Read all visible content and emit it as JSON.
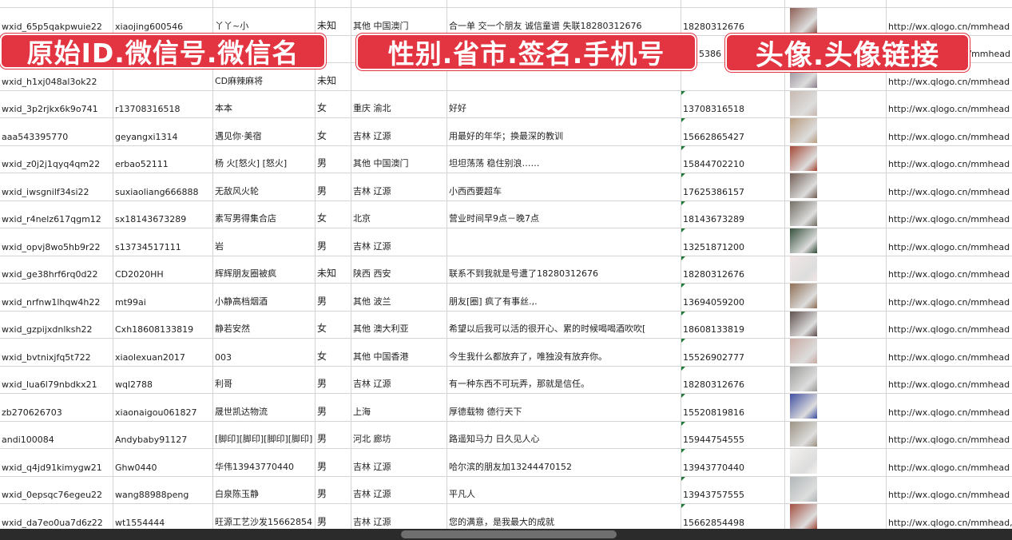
{
  "banners": {
    "left": "原始ID.微信号.微信名",
    "middle": "性别.省市.签名.手机号",
    "right": "头像.头像链接"
  },
  "avatar_colors": [
    "#c9a9a0",
    "#8a7d8c",
    "#c7b8b0",
    "#b79a7c",
    "#a3432f",
    "#6d5a50",
    "#6f6a60",
    "#2f4a36",
    "#f2e6e6",
    "#8c6a50",
    "#5a4a48",
    "#c8a8a0",
    "#9a9a98",
    "#3a4aa0",
    "#9a9080",
    "#f4f2f0",
    "#b0b6b8",
    "#a04a3a"
  ],
  "rows": [
    {
      "id": "wxid_65p5qakpwuie22",
      "wechat": "xiaojing600546",
      "name": "丫丫~小",
      "gender": "未知",
      "region": "其他 中国澳门",
      "signature": "合一单 交一个朋友 诚信童谱 失联18280312676",
      "phone": "18280312676",
      "url": "http://wx.qlogo.cn/mmhead"
    },
    {
      "id": "",
      "wechat": "",
      "name": "",
      "gender": "",
      "region": "",
      "signature": "",
      "phone": "5386",
      "url": "/mmhead"
    },
    {
      "id": "wxid_h1xj048al3ok22",
      "wechat": "",
      "name": "CD麻辣麻将",
      "gender": "未知",
      "region": "",
      "signature": "",
      "phone": "",
      "url": "http://wx.qlogo.cn/mmhead"
    },
    {
      "id": "wxid_3p2rjkx6k9o741",
      "wechat": "r13708316518",
      "name": "本本",
      "gender": "女",
      "region": "重庆 渝北",
      "signature": "好好",
      "phone": "13708316518",
      "url": "http://wx.qlogo.cn/mmhead"
    },
    {
      "id": "aaa543395770",
      "wechat": "geyangxi1314",
      "name": "遇见你·美宿",
      "gender": "女",
      "region": "吉林 辽源",
      "signature": "用最好的年华；换最深的教训",
      "phone": "15662865427",
      "url": "http://wx.qlogo.cn/mmhead"
    },
    {
      "id": "wxid_z0j2j1qyq4qm22",
      "wechat": "erbao52111",
      "name": "杨 火[怒火] [怒火]",
      "gender": "男",
      "region": "其他 中国澳门",
      "signature": "坦坦荡荡 稳住别浪……",
      "phone": "15844702210",
      "url": "http://wx.qlogo.cn/mmhead"
    },
    {
      "id": "wxid_iwsgnilf34si22",
      "wechat": "suxiaoliang666888",
      "name": "无敌风火轮",
      "gender": "男",
      "region": "吉林 辽源",
      "signature": "小西西要超车",
      "phone": "17625386157",
      "url": "http://wx.qlogo.cn/mmhead"
    },
    {
      "id": "wxid_r4nelz617qgm12",
      "wechat": "sx18143673289",
      "name": "素写男得集合店",
      "gender": "女",
      "region": "北京",
      "signature": "营业时间早9点－晚7点",
      "phone": "18143673289",
      "url": "http://wx.qlogo.cn/mmhead"
    },
    {
      "id": "wxid_opvj8wo5hb9r22",
      "wechat": "s13734517111",
      "name": "岩",
      "gender": "男",
      "region": "吉林 辽源",
      "signature": "",
      "phone": "13251871200",
      "url": "http://wx.qlogo.cn/mmhead"
    },
    {
      "id": "wxid_ge38hrf6rq0d22",
      "wechat": "CD2020HH",
      "name": "辉辉朋友圈被疯",
      "gender": "未知",
      "region": "陕西 西安",
      "signature": "联系不到我就是号遭了18280312676",
      "phone": "18280312676",
      "url": "http://wx.qlogo.cn/mmhead"
    },
    {
      "id": "wxid_nrfnw1lhqw4h22",
      "wechat": "mt99ai",
      "name": "小静高档烟酒",
      "gender": "男",
      "region": "其他 波兰",
      "signature": "朋友[圈] 疯了有事丝.,.",
      "phone": "13694059200",
      "url": "http://wx.qlogo.cn/mmhead"
    },
    {
      "id": "wxid_gzpijxdnlksh22",
      "wechat": "Cxh18608133819",
      "name": "静若安然",
      "gender": "女",
      "region": "其他 澳大利亚",
      "signature": "希望以后我可以活的很开心、累的时候喝喝酒吹吹[",
      "phone": "18608133819",
      "url": "http://wx.qlogo.cn/mmhead"
    },
    {
      "id": "wxid_bvtnixjfq5t722",
      "wechat": "xiaolexuan2017",
      "name": "003",
      "gender": "女",
      "region": "其他 中国香港",
      "signature": "今生我什么都放弃了，唯独没有放弃你。",
      "phone": "15526902777",
      "url": "http://wx.qlogo.cn/mmhead"
    },
    {
      "id": "wxid_lua6l79nbdkx21",
      "wechat": "wql2788",
      "name": "利哥",
      "gender": "男",
      "region": "吉林 辽源",
      "signature": "有一种东西不可玩弄，那就是信任。",
      "phone": "18280312676",
      "url": "http://wx.qlogo.cn/mmhead"
    },
    {
      "id": "zb270626703",
      "wechat": "xiaonaigou061827",
      "name": "晟世凯达物流",
      "gender": "男",
      "region": "上海",
      "signature": "厚德载物 德行天下",
      "phone": "15520819816",
      "url": "http://wx.qlogo.cn/mmhead"
    },
    {
      "id": "andi100084",
      "wechat": "Andybaby91127",
      "name": "[脚印][脚印][脚印][脚印]",
      "gender": "男",
      "region": "河北 廊坊",
      "signature": "路遥知马力 日久见人心",
      "phone": "15944754555",
      "url": "http://wx.qlogo.cn/mmhead"
    },
    {
      "id": "wxid_q4jd91kimygw21",
      "wechat": "Ghw0440",
      "name": "华伟13943770440",
      "gender": "男",
      "region": "吉林 辽源",
      "signature": "哈尔滨的朋友加13244470152",
      "phone": "13943770440",
      "url": "http://wx.qlogo.cn/mmhead"
    },
    {
      "id": "wxid_0epsqc76egeu22",
      "wechat": "wang88988peng",
      "name": "白泉陈玉静",
      "gender": "男",
      "region": "吉林 辽源",
      "signature": "平凡人",
      "phone": "13943757555",
      "url": "http://wx.qlogo.cn/mmhead"
    },
    {
      "id": "wxid_da7eo0ua7d6z22",
      "wechat": "wt1554444",
      "name": "旺源工艺沙发15662854",
      "gender": "男",
      "region": "吉林 辽源",
      "signature": "您的满意，是我最大的成就",
      "phone": "15662854498",
      "url": "http://wx.qlogo.cn/mmhead,"
    }
  ]
}
